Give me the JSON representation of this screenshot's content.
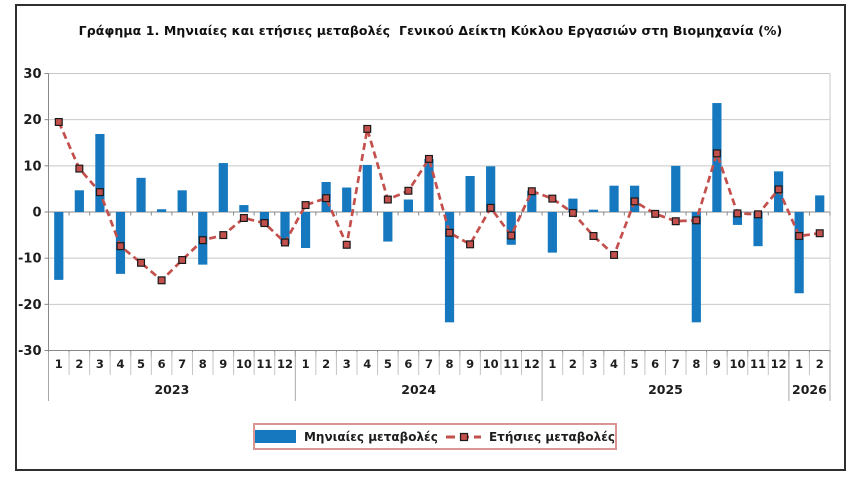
{
  "chart_data": {
    "type": "bar+line",
    "title": "Γράφημα 1. Μηνιαίες και ετήσιες μεταβολές  Γενικού Δείκτη Κύκλου Εργασιών στη Βιομηχανία (%)",
    "ylim": [
      -30,
      30
    ],
    "yticks": [
      30,
      20,
      10,
      0,
      -10,
      -20,
      -30
    ],
    "grid": true,
    "legend_position": "bottom",
    "legend": {
      "border_color": "#D99694"
    },
    "x_axis": {
      "years": [
        {
          "label": "2023",
          "months": [
            "1",
            "2",
            "3",
            "4",
            "5",
            "6",
            "7",
            "8",
            "9",
            "10",
            "11",
            "12"
          ]
        },
        {
          "label": "2024",
          "months": [
            "1",
            "2",
            "3",
            "4",
            "5",
            "6",
            "7",
            "8",
            "9",
            "10",
            "11",
            "12"
          ]
        },
        {
          "label": "2025",
          "months": [
            "1",
            "2",
            "3",
            "4",
            "5",
            "6",
            "7",
            "8",
            "9",
            "10",
            "11",
            "12"
          ]
        },
        {
          "label": "2026",
          "months": [
            "1",
            "2"
          ]
        }
      ]
    },
    "series": [
      {
        "name": "Μηνιαίες μεταβολές",
        "type": "bar",
        "color": "#1678BE",
        "values": [
          -14.7,
          4.7,
          16.9,
          -13.4,
          7.4,
          0.6,
          4.7,
          -11.4,
          10.6,
          1.5,
          -2.9,
          -7.0,
          -7.8,
          6.5,
          5.3,
          10.2,
          -6.4,
          2.7,
          11.5,
          -23.9,
          7.8,
          9.9,
          -7.1,
          4.6,
          -8.8,
          2.9,
          0.5,
          5.7,
          5.7,
          0.0,
          10.0,
          -23.9,
          23.6,
          -2.8,
          -7.4,
          8.8,
          -17.6,
          3.6
        ]
      },
      {
        "name": "Ετήσιες μεταβολές",
        "type": "line",
        "style": "dashed",
        "marker": "square",
        "color": "#C3504C",
        "marker_border": "#1a1a1a",
        "values": [
          19.5,
          9.4,
          4.3,
          -7.4,
          -11.0,
          -14.8,
          -10.4,
          -6.1,
          -5.0,
          -1.3,
          -2.4,
          -6.6,
          1.5,
          3.0,
          -7.1,
          18.0,
          2.7,
          4.6,
          11.5,
          -4.5,
          -7.0,
          0.9,
          -5.1,
          4.5,
          2.9,
          -0.2,
          -5.2,
          -9.3,
          2.3,
          -0.4,
          -2.0,
          -1.8,
          12.7,
          -0.3,
          -0.5,
          4.9,
          -5.2,
          -4.6
        ]
      }
    ]
  }
}
